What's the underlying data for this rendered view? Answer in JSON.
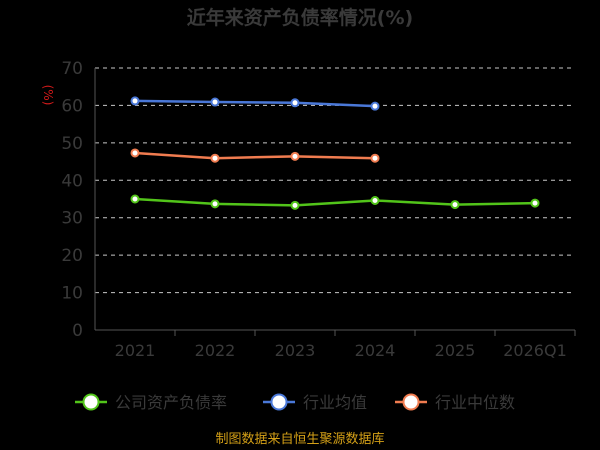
{
  "chart_data": {
    "type": "line",
    "title": "近年来资产负债率情况(%)",
    "unit": "(%)",
    "categories": [
      "2021",
      "2022",
      "2023",
      "2024",
      "2025",
      "2026Q1"
    ],
    "yticks": [
      "0",
      "10",
      "20",
      "30",
      "40",
      "50",
      "60",
      "70"
    ],
    "ylim": [
      0,
      70
    ],
    "grid": true,
    "legend_position": "bottom",
    "series": [
      {
        "name": "公司资产负债率",
        "color": "#52c41a",
        "values": [
          35.0,
          33.7,
          33.3,
          34.6,
          33.5,
          33.9
        ]
      },
      {
        "name": "行业均值",
        "color": "#4a78d8",
        "values": [
          61.2,
          60.9,
          60.7,
          59.8,
          null,
          null
        ]
      },
      {
        "name": "行业中位数",
        "color": "#f07c50",
        "values": [
          47.3,
          45.9,
          46.4,
          45.9,
          null,
          null
        ]
      }
    ],
    "source": "制图数据来自恒生聚源数据库"
  }
}
